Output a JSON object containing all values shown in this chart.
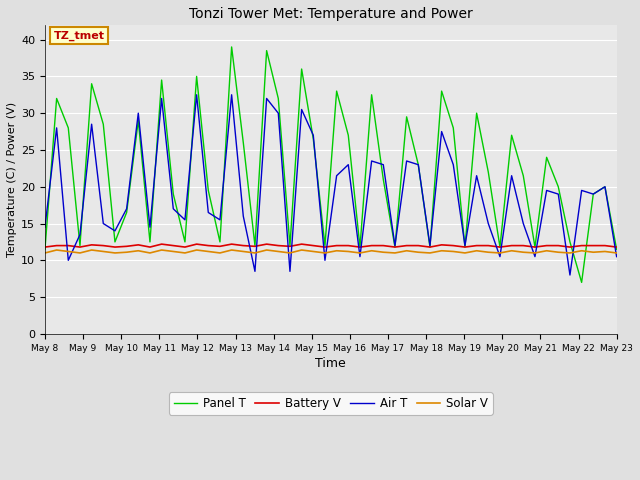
{
  "title": "Tonzi Tower Met: Temperature and Power",
  "xlabel": "Time",
  "ylabel": "Temperature (C) / Power (V)",
  "annotation": "TZ_tmet",
  "ylim": [
    0,
    42
  ],
  "yticks": [
    0,
    5,
    10,
    15,
    20,
    25,
    30,
    35,
    40
  ],
  "xtick_labels": [
    "May 8",
    "May 9",
    "May 10",
    "May 11",
    "May 12",
    "May 13",
    "May 14",
    "May 15",
    "May 16",
    "May 17",
    "May 18",
    "May 19",
    "May 20",
    "May 21",
    "May 22",
    "May 23"
  ],
  "panel_t_color": "#00cc00",
  "battery_v_color": "#dd0000",
  "air_t_color": "#0000cc",
  "solar_v_color": "#dd8800",
  "background_color": "#e8e8e8",
  "fig_facecolor": "#e0e0e0",
  "panel_t": [
    11.5,
    32.0,
    28.0,
    12.0,
    34.0,
    28.5,
    12.5,
    16.5,
    29.0,
    12.5,
    34.5,
    19.0,
    12.5,
    35.0,
    19.5,
    12.5,
    39.0,
    26.0,
    12.0,
    38.5,
    32.0,
    12.0,
    36.0,
    26.5,
    12.0,
    33.0,
    27.0,
    11.8,
    32.5,
    21.0,
    11.8,
    29.5,
    23.0,
    11.8,
    33.0,
    28.0,
    11.8,
    30.0,
    22.0,
    11.8,
    27.0,
    21.5,
    11.8,
    24.0,
    20.0,
    12.5,
    7.0,
    19.0,
    20.0,
    11.5
  ],
  "battery_v": [
    11.8,
    12.0,
    12.0,
    11.8,
    12.1,
    12.0,
    11.8,
    11.9,
    12.1,
    11.8,
    12.2,
    12.0,
    11.8,
    12.2,
    12.0,
    11.9,
    12.2,
    12.0,
    11.9,
    12.2,
    12.0,
    11.9,
    12.2,
    12.0,
    11.8,
    12.0,
    12.0,
    11.8,
    12.0,
    12.0,
    11.8,
    12.0,
    12.0,
    11.8,
    12.1,
    12.0,
    11.8,
    12.0,
    12.0,
    11.8,
    12.0,
    12.0,
    11.8,
    12.0,
    12.0,
    11.8,
    12.0,
    12.0,
    12.0,
    11.8
  ],
  "solar_v": [
    11.0,
    11.4,
    11.2,
    11.0,
    11.4,
    11.2,
    11.0,
    11.1,
    11.3,
    11.0,
    11.4,
    11.2,
    11.0,
    11.4,
    11.2,
    11.0,
    11.4,
    11.2,
    11.0,
    11.4,
    11.2,
    11.0,
    11.4,
    11.2,
    11.0,
    11.3,
    11.2,
    11.0,
    11.3,
    11.1,
    11.0,
    11.3,
    11.1,
    11.0,
    11.3,
    11.2,
    11.0,
    11.3,
    11.1,
    11.0,
    11.3,
    11.1,
    11.0,
    11.3,
    11.1,
    11.0,
    11.3,
    11.1,
    11.2,
    11.0
  ],
  "air_t": [
    14.5,
    28.0,
    10.0,
    13.5,
    28.5,
    15.0,
    14.0,
    17.0,
    30.0,
    14.5,
    32.0,
    17.0,
    15.5,
    32.5,
    16.5,
    15.5,
    32.5,
    16.0,
    8.5,
    32.0,
    30.0,
    8.5,
    30.5,
    27.0,
    10.0,
    21.5,
    23.0,
    10.5,
    23.5,
    23.0,
    12.0,
    23.5,
    23.0,
    12.0,
    27.5,
    23.0,
    12.0,
    21.5,
    15.0,
    10.5,
    21.5,
    15.0,
    10.5,
    19.5,
    19.0,
    8.0,
    19.5,
    19.0,
    20.0,
    10.5
  ]
}
